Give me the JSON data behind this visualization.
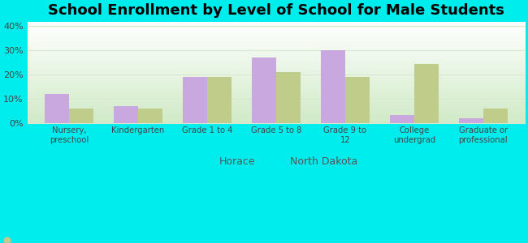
{
  "title": "School Enrollment by Level of School for Male Students",
  "categories": [
    "Nursery,\npreschool",
    "Kindergarten",
    "Grade 1 to 4",
    "Grade 5 to 8",
    "Grade 9 to\n12",
    "College\nundergrad",
    "Graduate or\nprofessional"
  ],
  "horace": [
    12,
    7,
    19,
    27,
    30,
    3.5,
    2
  ],
  "north_dakota": [
    6,
    6,
    19,
    21,
    19,
    24.5,
    6
  ],
  "horace_color": "#c9a8df",
  "north_dakota_color": "#bfcc8a",
  "background_color": "#00eded",
  "plot_bg_color": "#e4f0e0",
  "ylim": [
    0,
    42
  ],
  "yticks": [
    0,
    10,
    20,
    30,
    40
  ],
  "title_fontsize": 13,
  "legend_labels": [
    "Horace",
    "North Dakota"
  ],
  "bar_width": 0.35,
  "grid_color": "#d8e8d0",
  "tick_label_color": "#444444",
  "legend_text_color": "#555555"
}
